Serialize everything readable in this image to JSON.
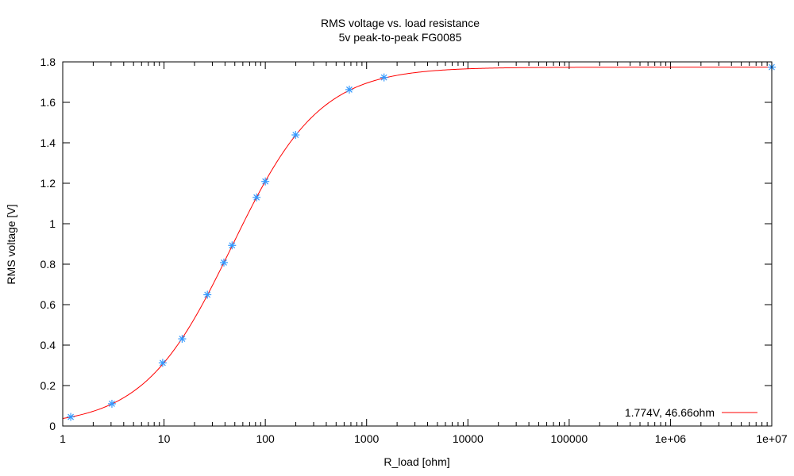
{
  "chart_data": {
    "type": "scatter",
    "title": "RMS voltage vs. load resistance",
    "subtitle": "5v peak-to-peak FG0085",
    "xlabel": "R_load [ohm]",
    "ylabel": "RMS voltage [V]",
    "xscale": "log",
    "xlim": [
      1,
      10000000
    ],
    "ylim": [
      0,
      1.8
    ],
    "xticks": [
      1,
      10,
      100,
      1000,
      10000,
      100000,
      1000000,
      10000000
    ],
    "xtick_labels": [
      "1",
      "10",
      "100",
      "1000",
      "10000",
      "100000",
      "1e+06",
      "1e+07"
    ],
    "yticks": [
      0,
      0.2,
      0.4,
      0.6,
      0.8,
      1,
      1.2,
      1.4,
      1.6,
      1.8
    ],
    "ytick_labels": [
      "0",
      "0.2",
      "0.4",
      "0.6",
      "0.8",
      "1",
      "1.2",
      "1.4",
      "1.6",
      "1.8"
    ],
    "grid": false,
    "legend_placement": "bottom-right",
    "series": [
      {
        "type": "scatter",
        "marker": "asterisk",
        "color": "#3399ff",
        "x": [
          1.2,
          3.06,
          9.7,
          15.1,
          26.8,
          39,
          47,
          82,
          100,
          199,
          675,
          1486,
          10000000
        ],
        "y": [
          0.045,
          0.11,
          0.312,
          0.431,
          0.649,
          0.808,
          0.893,
          1.13,
          1.209,
          1.439,
          1.663,
          1.723,
          1.774
        ]
      },
      {
        "type": "line",
        "name": "1.774V, 46.66ohm",
        "color": "#ff0000",
        "function": "V = 1.774 * R / (R + 46.66)",
        "V0": 1.774,
        "Rs": 46.66
      }
    ]
  }
}
